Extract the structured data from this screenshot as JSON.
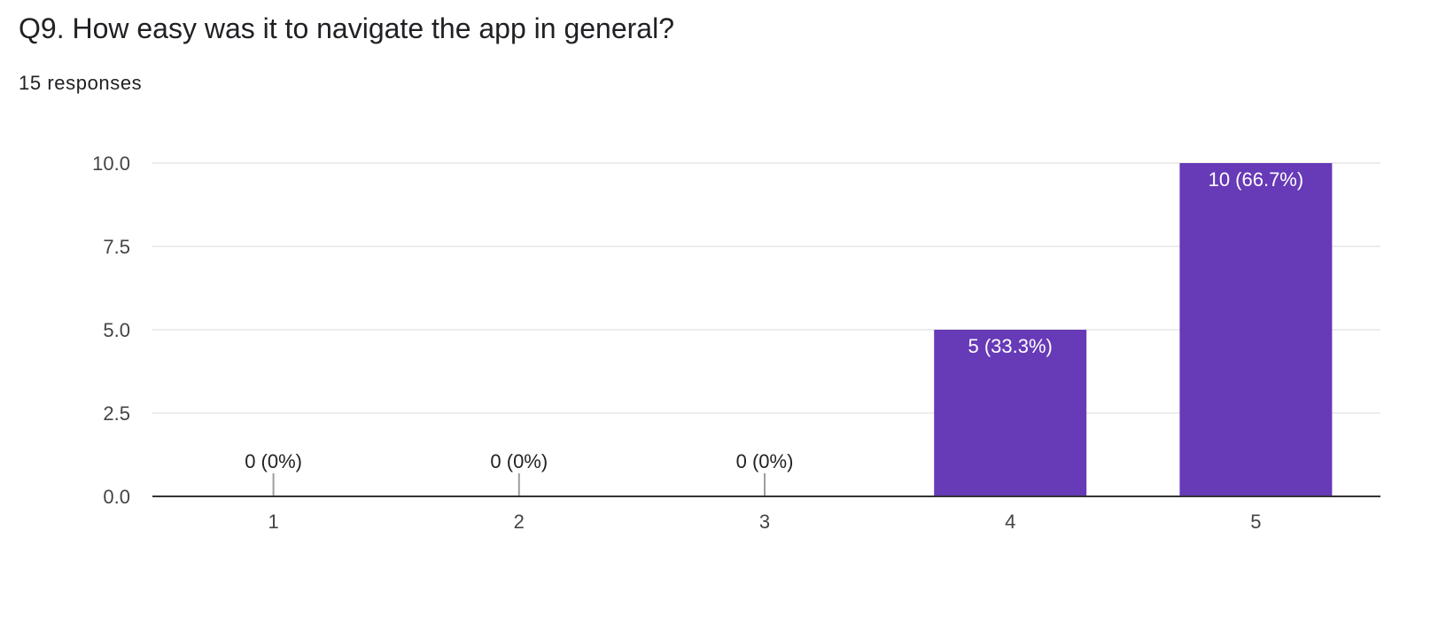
{
  "question": {
    "title": "Q9. How easy was it to navigate the app in general?",
    "responses_label": "15 responses"
  },
  "colors": {
    "bar": "#673ab7",
    "grid": "#e6e6e6",
    "axis": "#333333",
    "zero_tick": "#9e9e9e",
    "label_inside": "#ffffff",
    "label_outside": "#222222",
    "tick_text": "#444444"
  },
  "chart_data": {
    "type": "bar",
    "title": "",
    "xlabel": "",
    "ylabel": "",
    "categories": [
      "1",
      "2",
      "3",
      "4",
      "5"
    ],
    "values": [
      0,
      0,
      0,
      5,
      10
    ],
    "data_labels": [
      "0 (0%)",
      "0 (0%)",
      "0 (0%)",
      "5 (33.3%)",
      "10 (66.7%)"
    ],
    "ylim": [
      0,
      10
    ],
    "yticks": [
      "0.0",
      "2.5",
      "5.0",
      "7.5",
      "10.0"
    ],
    "grid": true,
    "legend": "none"
  }
}
